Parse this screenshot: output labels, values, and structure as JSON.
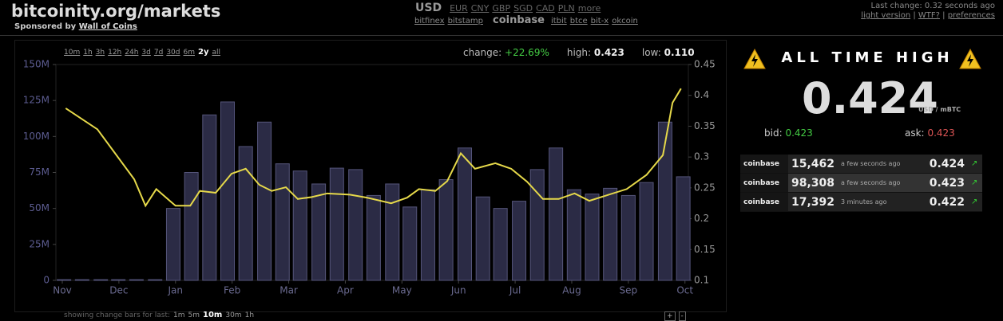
{
  "header": {
    "title": "bitcoinity.org/markets",
    "sponsor_prefix": "Sponsored by",
    "sponsor": "Wall of Coins",
    "currency": "USD",
    "currencies": [
      "EUR",
      "CNY",
      "GBP",
      "SGD",
      "CAD",
      "PLN",
      "more"
    ],
    "exchanges": [
      "bitfinex",
      "bitstamp",
      "coinbase",
      "itbit",
      "btce",
      "bit-x",
      "okcoin"
    ],
    "active_exchange": 2,
    "last_change": "Last change: 0.32 seconds ago",
    "links": [
      "light version",
      "WTF?",
      "preferences"
    ]
  },
  "ranges": [
    "10m",
    "1h",
    "3h",
    "12h",
    "24h",
    "3d",
    "7d",
    "30d",
    "6m",
    "2y",
    "all"
  ],
  "active_range": 9,
  "stats": [
    {
      "label": "change:",
      "value": "+22.69%"
    },
    {
      "label": "high:",
      "value": "0.423"
    },
    {
      "label": "low:",
      "value": "0.110"
    }
  ],
  "change_bars": {
    "label": "showing change bars for last:",
    "options": [
      "1m",
      "5m",
      "10m",
      "30m",
      "1h"
    ],
    "active": 2
  },
  "zoom": [
    "+",
    "-"
  ],
  "chart_data": {
    "type": "bar_line",
    "xlim": [
      -0.113,
      11.06
    ],
    "xticks": [
      {
        "value": 0,
        "label": "Nov"
      },
      {
        "value": 1,
        "label": "Dec"
      },
      {
        "value": 2,
        "label": "Jan"
      },
      {
        "value": 3,
        "label": "Feb"
      },
      {
        "value": 4,
        "label": "Mar"
      },
      {
        "value": 5,
        "label": "Apr"
      },
      {
        "value": 6,
        "label": "May"
      },
      {
        "value": 7,
        "label": "Jun"
      },
      {
        "value": 8,
        "label": "Jul"
      },
      {
        "value": 9,
        "label": "Aug"
      },
      {
        "value": 10,
        "label": "Sep"
      },
      {
        "value": 11,
        "label": "Oct"
      }
    ],
    "ylim": [
      0,
      150000000
    ],
    "yticks": [
      0,
      {
        "value": 25000000,
        "label": "25M"
      },
      {
        "value": 50000000,
        "label": "50M"
      },
      {
        "value": 75000000,
        "label": "75M"
      },
      {
        "value": 100000000,
        "label": "100M"
      },
      {
        "value": 125000000,
        "label": "125M"
      },
      {
        "value": 150000000,
        "label": "150M"
      }
    ],
    "y2lim": [
      0.1,
      0.45
    ],
    "y2ticks": [
      0.1,
      0.15,
      0.2,
      0.25,
      0.3,
      0.35,
      0.4,
      0.45
    ],
    "series": [
      {
        "kind": "bar",
        "color": "#2b2b45",
        "stroke": "#55557a",
        "x": [
          0.03,
          0.35,
          0.68,
          0.99,
          1.31,
          1.64,
          1.96,
          2.28,
          2.6,
          2.92,
          3.24,
          3.57,
          3.89,
          4.2,
          4.53,
          4.85,
          5.18,
          5.5,
          5.83,
          6.14,
          6.46,
          6.78,
          7.11,
          7.43,
          7.74,
          8.07,
          8.39,
          8.72,
          9.04,
          9.36,
          9.68,
          10.0,
          10.32,
          10.65,
          10.97
        ],
        "values": [
          500000,
          500000,
          500000,
          500000,
          500000,
          500000,
          50000000,
          75000000,
          115000000,
          124000000,
          93000000,
          110000000,
          81000000,
          76000000,
          67000000,
          78000000,
          77000000,
          59000000,
          67000000,
          51000000,
          63000000,
          70000000,
          92000000,
          58000000,
          50000000,
          55000000,
          77000000,
          92000000,
          63000000,
          60000000,
          64000000,
          59000000,
          68000000,
          110000000,
          72000000
        ]
      },
      {
        "kind": "line",
        "color": "#e6d94a",
        "axis": "y2",
        "x": [
          0.06,
          0.62,
          1.27,
          1.47,
          1.66,
          2.0,
          2.26,
          2.43,
          2.71,
          2.99,
          3.24,
          3.48,
          3.7,
          3.95,
          4.16,
          4.4,
          4.68,
          5.08,
          5.39,
          5.81,
          6.09,
          6.3,
          6.59,
          6.8,
          7.04,
          7.29,
          7.65,
          7.93,
          8.21,
          8.49,
          8.77,
          9.05,
          9.31,
          9.62,
          9.97,
          10.32,
          10.61,
          10.78,
          10.93
        ],
        "values": [
          0.379,
          0.345,
          0.264,
          0.221,
          0.248,
          0.221,
          0.221,
          0.245,
          0.242,
          0.273,
          0.281,
          0.255,
          0.245,
          0.251,
          0.232,
          0.235,
          0.241,
          0.239,
          0.234,
          0.225,
          0.234,
          0.248,
          0.245,
          0.261,
          0.306,
          0.281,
          0.29,
          0.281,
          0.26,
          0.232,
          0.232,
          0.241,
          0.229,
          0.238,
          0.248,
          0.271,
          0.303,
          0.388,
          0.411
        ]
      }
    ]
  },
  "ticker": {
    "heading": "ALL TIME HIGH",
    "price": "0.424",
    "unit": "USD / mBTC",
    "bid_label": "bid:",
    "bid": "0.423",
    "ask_label": "ask:",
    "ask": "0.423",
    "trades": [
      {
        "exchange": "coinbase",
        "amount": "15,462",
        "time": "a few seconds ago",
        "price": "0.424"
      },
      {
        "exchange": "coinbase",
        "amount": "98,308",
        "time": "a few seconds ago",
        "price": "0.423"
      },
      {
        "exchange": "coinbase",
        "amount": "17,392",
        "time": "3 minutes ago",
        "price": "0.422"
      }
    ]
  }
}
